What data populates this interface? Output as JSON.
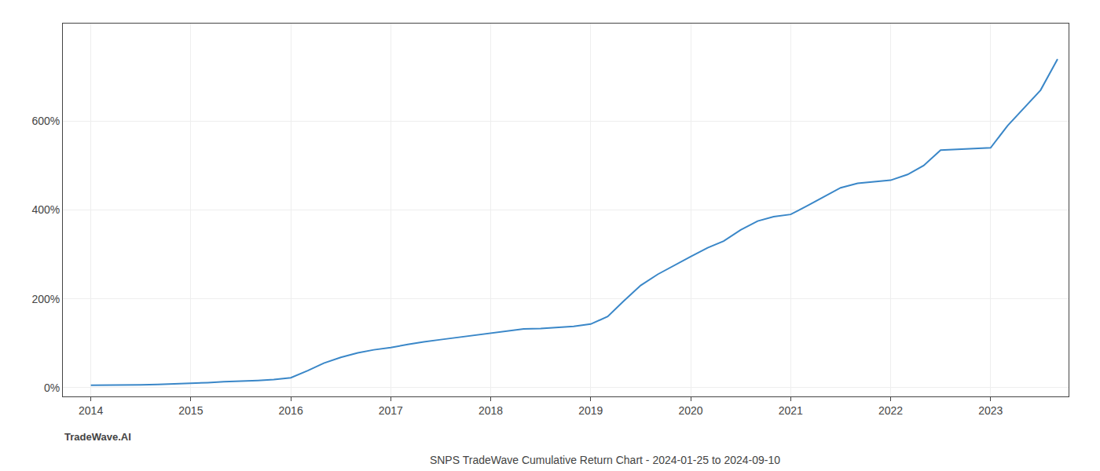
{
  "chart_data": {
    "type": "line",
    "title": "SNPS TradeWave Cumulative Return Chart - 2024-01-25 to 2024-09-10",
    "annotations": [
      "TradeWave.AI"
    ],
    "x": [
      2014.0,
      2014.08,
      2014.17,
      2014.33,
      2014.5,
      2014.67,
      2014.83,
      2015.0,
      2015.17,
      2015.33,
      2015.5,
      2015.67,
      2015.83,
      2016.0,
      2016.17,
      2016.33,
      2016.5,
      2016.67,
      2016.83,
      2017.0,
      2017.17,
      2017.33,
      2017.5,
      2017.67,
      2017.83,
      2018.0,
      2018.17,
      2018.33,
      2018.5,
      2018.67,
      2018.83,
      2019.0,
      2019.17,
      2019.33,
      2019.5,
      2019.67,
      2019.83,
      2020.0,
      2020.17,
      2020.33,
      2020.5,
      2020.67,
      2020.83,
      2021.0,
      2021.17,
      2021.33,
      2021.5,
      2021.67,
      2021.83,
      2022.0,
      2022.17,
      2022.33,
      2022.5,
      2022.67,
      2022.83,
      2023.0,
      2023.17,
      2023.5,
      2023.67
    ],
    "values": [
      5,
      5,
      5,
      6,
      6,
      7,
      8,
      10,
      11,
      13,
      14,
      16,
      18,
      22,
      38,
      55,
      68,
      78,
      85,
      90,
      97,
      103,
      108,
      113,
      118,
      123,
      128,
      132,
      133,
      135,
      138,
      143,
      160,
      195,
      230,
      255,
      275,
      295,
      315,
      330,
      355,
      375,
      385,
      390,
      410,
      430,
      450,
      460,
      463,
      467,
      480,
      500,
      535,
      537,
      538,
      540,
      590,
      670,
      740
    ],
    "color": "#3a87c8",
    "xlim": [
      2013.72,
      2023.78
    ],
    "ylim": [
      -20,
      820
    ],
    "xticks": [
      2014,
      2015,
      2016,
      2017,
      2018,
      2019,
      2020,
      2021,
      2022,
      2023
    ],
    "yticks": [
      {
        "value": 0,
        "label": "0%"
      },
      {
        "value": 200,
        "label": "200%"
      },
      {
        "value": 400,
        "label": "400%"
      },
      {
        "value": 600,
        "label": "600%"
      }
    ],
    "grid": true
  }
}
